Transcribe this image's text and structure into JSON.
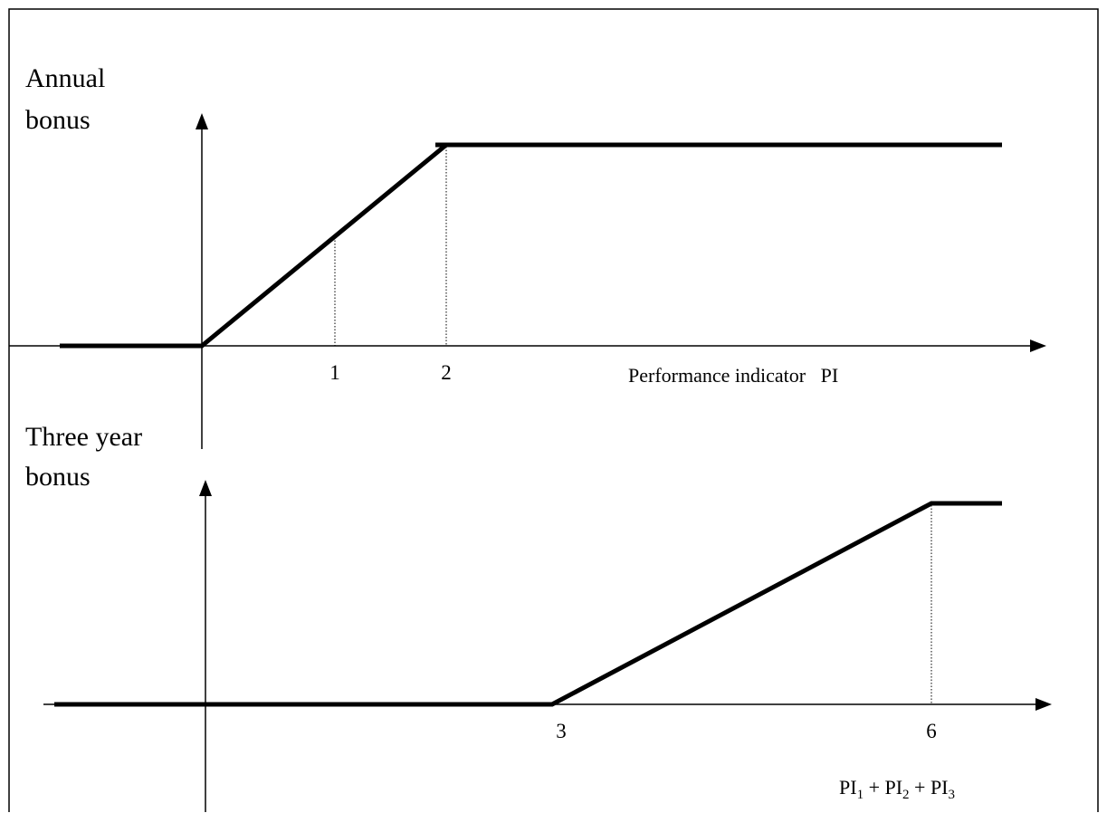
{
  "annual": {
    "ylabel_line1": "Annual",
    "ylabel_line2": "bonus",
    "ticks": [
      "1",
      "2"
    ],
    "xlabel": "Performance indicator   PI"
  },
  "three_year": {
    "ylabel_line1": "Three year",
    "ylabel_line2": "bonus",
    "ticks": [
      "3",
      "6"
    ],
    "xlabel_parts": [
      "PI",
      "1",
      " + PI",
      "2",
      " + PI",
      "3"
    ]
  }
}
